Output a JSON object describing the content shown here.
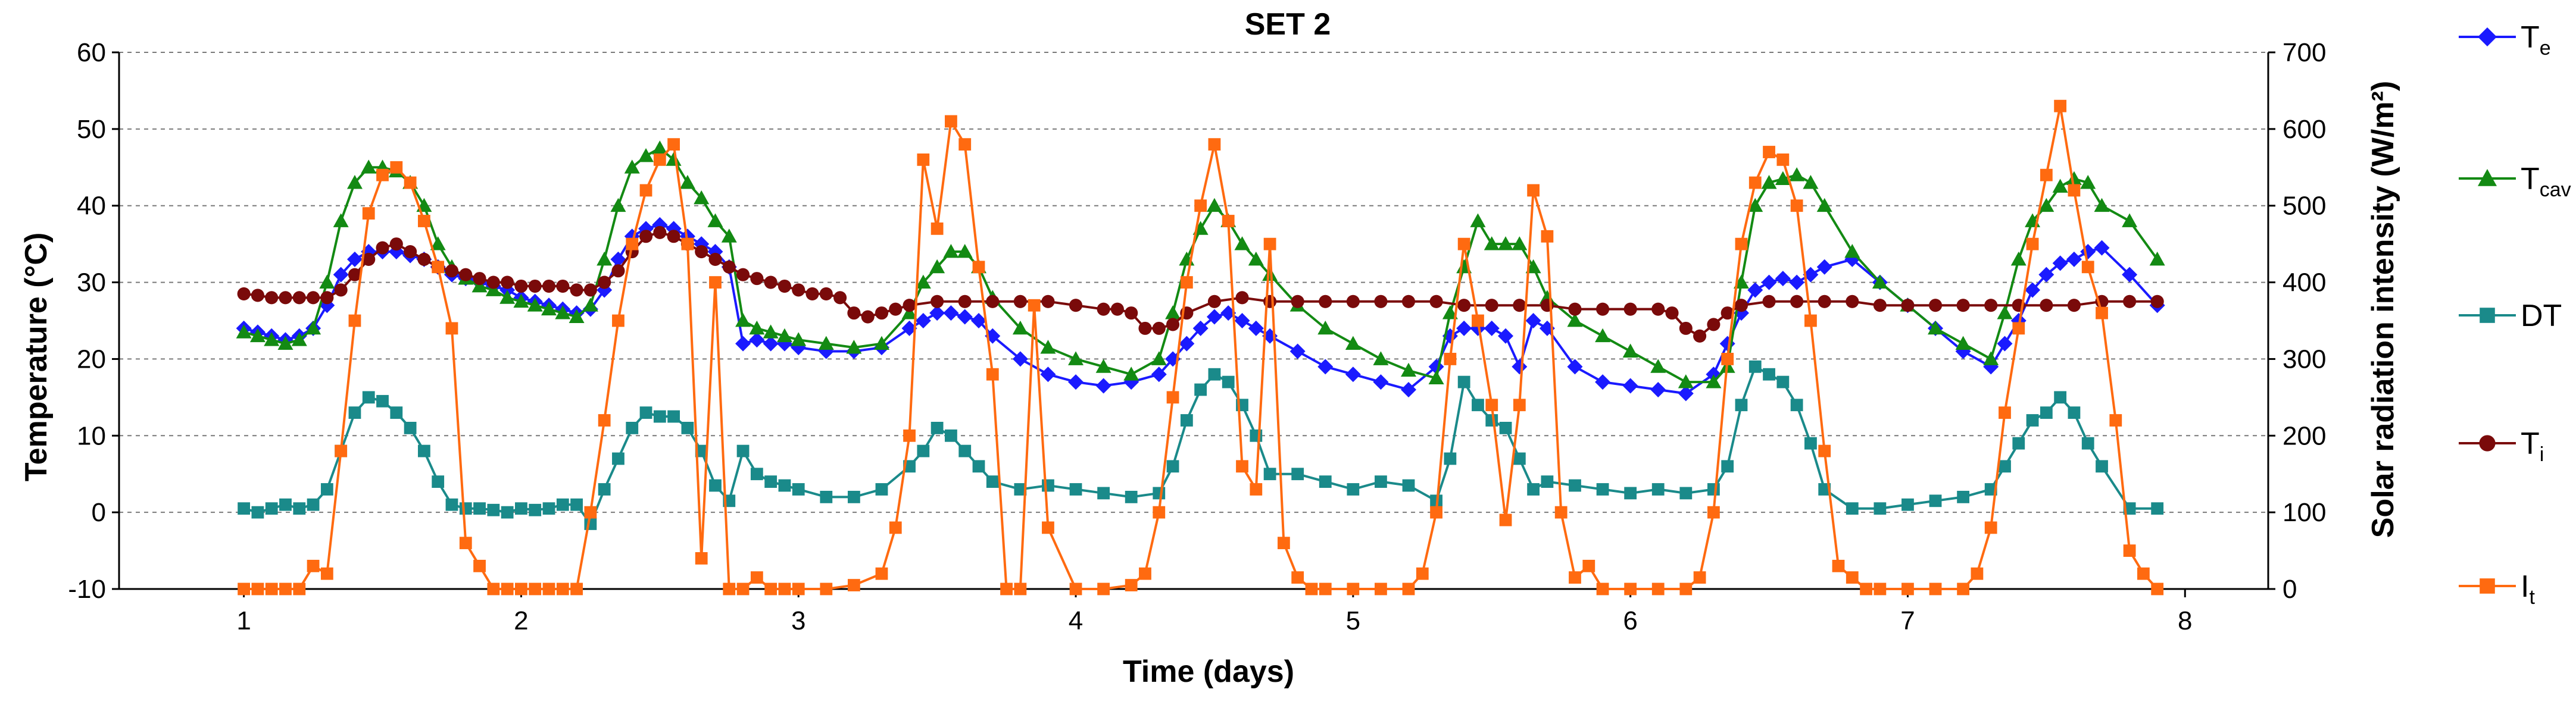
{
  "chart_data": {
    "type": "line",
    "title": "SET 2",
    "xlabel": "Time (days)",
    "ylabel": "Temperature (°C)",
    "y2label": "Solar radiation intensity (W/m²)",
    "xlim": [
      0.55,
      8.3
    ],
    "ylim": [
      -10,
      60
    ],
    "y2lim": [
      0,
      700
    ],
    "xticks": [
      "1",
      "2",
      "3",
      "4",
      "5",
      "6",
      "7",
      "8"
    ],
    "yticks": [
      "60",
      "50",
      "40",
      "30",
      "20",
      "10",
      "0",
      "-10"
    ],
    "y2ticks": [
      "700",
      "600",
      "500",
      "400",
      "300",
      "200",
      "100",
      "0"
    ],
    "grid": true,
    "legend_position": "right",
    "series": [
      {
        "name": "Te",
        "base": "T",
        "sub": "e",
        "axis": "left",
        "color": "#1a1aff",
        "marker": "diamond",
        "x": [
          1,
          1.05,
          1.1,
          1.15,
          1.2,
          1.25,
          1.3,
          1.35,
          1.4,
          1.45,
          1.5,
          1.55,
          1.6,
          1.65,
          1.7,
          1.75,
          1.8,
          1.85,
          1.9,
          1.95,
          2,
          2.05,
          2.1,
          2.15,
          2.2,
          2.25,
          2.3,
          2.35,
          2.4,
          2.45,
          2.5,
          2.55,
          2.6,
          2.65,
          2.7,
          2.75,
          2.8,
          2.85,
          2.9,
          2.95,
          3,
          3.1,
          3.2,
          3.3,
          3.4,
          3.45,
          3.5,
          3.55,
          3.6,
          3.65,
          3.7,
          3.8,
          3.9,
          4,
          4.1,
          4.2,
          4.3,
          4.35,
          4.4,
          4.45,
          4.5,
          4.55,
          4.6,
          4.65,
          4.7,
          4.8,
          4.9,
          5,
          5.1,
          5.2,
          5.3,
          5.35,
          5.4,
          5.45,
          5.5,
          5.55,
          5.6,
          5.65,
          5.7,
          5.8,
          5.9,
          6,
          6.1,
          6.2,
          6.3,
          6.35,
          6.4,
          6.45,
          6.5,
          6.55,
          6.6,
          6.65,
          6.7,
          6.8,
          6.9,
          7,
          7.1,
          7.2,
          7.3,
          7.35,
          7.4,
          7.45,
          7.5,
          7.55,
          7.6,
          7.65,
          7.7,
          7.8,
          7.9
        ],
        "y": [
          24,
          23.5,
          23,
          22.5,
          23,
          24,
          27,
          31,
          33,
          34,
          34,
          34,
          33.5,
          33,
          32,
          31,
          30.5,
          30,
          29.5,
          29,
          28,
          27.5,
          27,
          26.5,
          26,
          26.5,
          29,
          33,
          36,
          37,
          37.5,
          37,
          36,
          35,
          34,
          32,
          22,
          22.5,
          22,
          22,
          21.5,
          21,
          21,
          21.5,
          24,
          25,
          26,
          26,
          25.5,
          25,
          23,
          20,
          18,
          17,
          16.5,
          17,
          18,
          20,
          22,
          24,
          25.5,
          26,
          25,
          24,
          23,
          21,
          19,
          18,
          17,
          16,
          19,
          23,
          24,
          24,
          24,
          23,
          19,
          25,
          24,
          19,
          17,
          16.5,
          16,
          15.5,
          18,
          22,
          26,
          29,
          30,
          30.5,
          30,
          31,
          32,
          33,
          30,
          27,
          24,
          21,
          19,
          22,
          25,
          29,
          31,
          32.5,
          33,
          34,
          34.5,
          31,
          27
        ]
      },
      {
        "name": "Tcav",
        "base": "T",
        "sub": "cav",
        "axis": "left",
        "color": "#138a13",
        "marker": "triangle",
        "x": [
          1,
          1.05,
          1.1,
          1.15,
          1.2,
          1.25,
          1.3,
          1.35,
          1.4,
          1.45,
          1.5,
          1.55,
          1.6,
          1.65,
          1.7,
          1.75,
          1.8,
          1.85,
          1.9,
          1.95,
          2,
          2.05,
          2.1,
          2.15,
          2.2,
          2.25,
          2.3,
          2.35,
          2.4,
          2.45,
          2.5,
          2.55,
          2.6,
          2.65,
          2.7,
          2.75,
          2.8,
          2.85,
          2.9,
          2.95,
          3,
          3.1,
          3.2,
          3.3,
          3.4,
          3.45,
          3.5,
          3.55,
          3.6,
          3.65,
          3.7,
          3.8,
          3.9,
          4,
          4.1,
          4.2,
          4.3,
          4.35,
          4.4,
          4.45,
          4.5,
          4.55,
          4.6,
          4.65,
          4.7,
          4.8,
          4.9,
          5,
          5.1,
          5.2,
          5.3,
          5.35,
          5.4,
          5.45,
          5.5,
          5.55,
          5.6,
          5.65,
          5.7,
          5.8,
          5.9,
          6,
          6.1,
          6.2,
          6.3,
          6.35,
          6.4,
          6.45,
          6.5,
          6.55,
          6.6,
          6.65,
          6.7,
          6.8,
          6.9,
          7,
          7.1,
          7.2,
          7.3,
          7.35,
          7.4,
          7.45,
          7.5,
          7.55,
          7.6,
          7.65,
          7.7,
          7.8,
          7.9
        ],
        "y": [
          23.5,
          23,
          22.5,
          22,
          22.5,
          24,
          30,
          38,
          43,
          45,
          45,
          44.5,
          43,
          40,
          35,
          32,
          30.5,
          29.5,
          29,
          28,
          27.5,
          27,
          26.5,
          26,
          25.5,
          27,
          33,
          40,
          45,
          46.5,
          47.5,
          46,
          43,
          41,
          38,
          36,
          25,
          24,
          23.5,
          23,
          22.5,
          22,
          21.5,
          22,
          26,
          30,
          32,
          34,
          34,
          32,
          28,
          24,
          21.5,
          20,
          19,
          18,
          20,
          26,
          33,
          37,
          40,
          38,
          35,
          33,
          31,
          27,
          24,
          22,
          20,
          18.5,
          17.5,
          26,
          32,
          38,
          35,
          35,
          35,
          32,
          28,
          25,
          23,
          21,
          19,
          17,
          17,
          19,
          30,
          40,
          43,
          43.5,
          44,
          43,
          40,
          34,
          30,
          27,
          24,
          22,
          20,
          26,
          33,
          38,
          40,
          42.5,
          43.5,
          43,
          40,
          38,
          33
        ]
      },
      {
        "name": "DT",
        "base": "DT",
        "sub": "",
        "axis": "left",
        "color": "#1a8a8a",
        "marker": "square",
        "x": [
          1,
          1.05,
          1.1,
          1.15,
          1.2,
          1.25,
          1.3,
          1.35,
          1.4,
          1.45,
          1.5,
          1.55,
          1.6,
          1.65,
          1.7,
          1.75,
          1.8,
          1.85,
          1.9,
          1.95,
          2,
          2.05,
          2.1,
          2.15,
          2.2,
          2.25,
          2.3,
          2.35,
          2.4,
          2.45,
          2.5,
          2.55,
          2.6,
          2.65,
          2.7,
          2.75,
          2.8,
          2.85,
          2.9,
          2.95,
          3,
          3.1,
          3.2,
          3.3,
          3.4,
          3.45,
          3.5,
          3.55,
          3.6,
          3.65,
          3.7,
          3.8,
          3.9,
          4,
          4.1,
          4.2,
          4.3,
          4.35,
          4.4,
          4.45,
          4.5,
          4.55,
          4.6,
          4.65,
          4.7,
          4.8,
          4.9,
          5,
          5.1,
          5.2,
          5.3,
          5.35,
          5.4,
          5.45,
          5.5,
          5.55,
          5.6,
          5.65,
          5.7,
          5.8,
          5.9,
          6,
          6.1,
          6.2,
          6.3,
          6.35,
          6.4,
          6.45,
          6.5,
          6.55,
          6.6,
          6.65,
          6.7,
          6.8,
          6.9,
          7,
          7.1,
          7.2,
          7.3,
          7.35,
          7.4,
          7.45,
          7.5,
          7.55,
          7.6,
          7.65,
          7.7,
          7.8,
          7.9
        ],
        "y": [
          0.5,
          0,
          0.5,
          1,
          0.5,
          1,
          3,
          8,
          13,
          15,
          14.5,
          13,
          11,
          8,
          4,
          1,
          0.5,
          0.5,
          0.3,
          0,
          0.5,
          0.3,
          0.5,
          1,
          1,
          -1.5,
          3,
          7,
          11,
          13,
          12.5,
          12.5,
          11,
          8,
          3.5,
          1.5,
          8,
          5,
          4,
          3.5,
          3,
          2,
          2,
          3,
          6,
          8,
          11,
          10,
          8,
          6,
          4,
          3,
          3.5,
          3,
          2.5,
          2,
          2.5,
          6,
          12,
          16,
          18,
          17,
          14,
          10,
          5,
          5,
          4,
          3,
          4,
          3.5,
          1.5,
          7,
          17,
          14,
          12,
          11,
          7,
          3,
          4,
          3.5,
          3,
          2.5,
          3,
          2.5,
          3,
          6,
          14,
          19,
          18,
          17,
          14,
          9,
          3,
          0.5,
          0.5,
          1,
          1.5,
          2,
          3,
          6,
          9,
          12,
          13,
          15,
          13,
          9,
          6,
          0.5,
          0.5
        ]
      },
      {
        "name": "Ti",
        "base": "T",
        "sub": "i",
        "axis": "left",
        "color": "#7a0a0a",
        "marker": "circle",
        "x": [
          1,
          1.05,
          1.1,
          1.15,
          1.2,
          1.25,
          1.3,
          1.35,
          1.4,
          1.45,
          1.5,
          1.55,
          1.6,
          1.65,
          1.7,
          1.75,
          1.8,
          1.85,
          1.9,
          1.95,
          2,
          2.05,
          2.1,
          2.15,
          2.2,
          2.25,
          2.3,
          2.35,
          2.4,
          2.45,
          2.5,
          2.55,
          2.6,
          2.65,
          2.7,
          2.75,
          2.8,
          2.85,
          2.9,
          2.95,
          3,
          3.05,
          3.1,
          3.15,
          3.2,
          3.25,
          3.3,
          3.35,
          3.4,
          3.5,
          3.6,
          3.7,
          3.8,
          3.9,
          4,
          4.1,
          4.15,
          4.2,
          4.25,
          4.3,
          4.35,
          4.4,
          4.5,
          4.6,
          4.7,
          4.8,
          4.9,
          5,
          5.1,
          5.2,
          5.3,
          5.4,
          5.5,
          5.6,
          5.7,
          5.8,
          5.9,
          6,
          6.1,
          6.15,
          6.2,
          6.25,
          6.3,
          6.35,
          6.4,
          6.5,
          6.6,
          6.7,
          6.8,
          6.9,
          7,
          7.1,
          7.2,
          7.3,
          7.4,
          7.5,
          7.6,
          7.7,
          7.8,
          7.9
        ],
        "y": [
          28.5,
          28.3,
          28,
          28,
          28,
          28,
          28,
          29,
          31,
          33,
          34.5,
          35,
          34,
          33,
          32,
          31.5,
          31,
          30.5,
          30,
          30,
          29.5,
          29.5,
          29.5,
          29.5,
          29,
          29,
          30,
          31.5,
          34,
          36,
          36.5,
          36,
          35,
          34,
          33,
          32,
          31,
          30.5,
          30,
          29.5,
          29,
          28.5,
          28.5,
          28,
          26,
          25.5,
          26,
          26.5,
          27,
          27.5,
          27.5,
          27.5,
          27.5,
          27.5,
          27,
          26.5,
          26.5,
          26,
          24,
          24,
          24.5,
          26,
          27.5,
          28,
          27.5,
          27.5,
          27.5,
          27.5,
          27.5,
          27.5,
          27.5,
          27,
          27,
          27,
          27,
          26.5,
          26.5,
          26.5,
          26.5,
          26,
          24,
          23,
          24.5,
          26,
          27,
          27.5,
          27.5,
          27.5,
          27.5,
          27,
          27,
          27,
          27,
          27,
          27,
          27,
          27,
          27.5,
          27.5,
          27.5
        ]
      },
      {
        "name": "It",
        "base": "I",
        "sub": "t",
        "axis": "right",
        "color": "#ff6a10",
        "marker": "square",
        "x": [
          1,
          1.05,
          1.1,
          1.15,
          1.2,
          1.25,
          1.3,
          1.35,
          1.4,
          1.45,
          1.5,
          1.55,
          1.6,
          1.65,
          1.7,
          1.75,
          1.8,
          1.85,
          1.9,
          1.95,
          2,
          2.05,
          2.1,
          2.15,
          2.2,
          2.25,
          2.3,
          2.35,
          2.4,
          2.45,
          2.5,
          2.55,
          2.6,
          2.65,
          2.7,
          2.75,
          2.8,
          2.85,
          2.9,
          2.95,
          3,
          3.1,
          3.2,
          3.3,
          3.35,
          3.4,
          3.45,
          3.5,
          3.55,
          3.6,
          3.65,
          3.7,
          3.75,
          3.8,
          3.85,
          3.9,
          4,
          4.1,
          4.2,
          4.25,
          4.3,
          4.35,
          4.4,
          4.45,
          4.5,
          4.55,
          4.6,
          4.65,
          4.7,
          4.75,
          4.8,
          4.85,
          4.9,
          5,
          5.1,
          5.2,
          5.25,
          5.3,
          5.35,
          5.4,
          5.45,
          5.5,
          5.55,
          5.6,
          5.65,
          5.7,
          5.75,
          5.8,
          5.85,
          5.9,
          6,
          6.1,
          6.2,
          6.25,
          6.3,
          6.35,
          6.4,
          6.45,
          6.5,
          6.55,
          6.6,
          6.65,
          6.7,
          6.75,
          6.8,
          6.85,
          6.9,
          7,
          7.1,
          7.2,
          7.25,
          7.3,
          7.35,
          7.4,
          7.45,
          7.5,
          7.55,
          7.6,
          7.65,
          7.7,
          7.75,
          7.8,
          7.85,
          7.9
        ],
        "y": [
          0,
          0,
          0,
          0,
          0,
          30,
          20,
          180,
          350,
          490,
          540,
          550,
          530,
          480,
          420,
          340,
          60,
          30,
          0,
          0,
          0,
          0,
          0,
          0,
          0,
          100,
          220,
          350,
          450,
          520,
          560,
          580,
          450,
          40,
          400,
          0,
          0,
          15,
          0,
          0,
          0,
          0,
          5,
          20,
          80,
          200,
          560,
          470,
          610,
          580,
          420,
          280,
          0,
          0,
          370,
          80,
          0,
          0,
          5,
          20,
          100,
          250,
          400,
          500,
          580,
          480,
          160,
          130,
          450,
          60,
          15,
          0,
          0,
          0,
          0,
          0,
          20,
          100,
          300,
          450,
          350,
          240,
          90,
          240,
          520,
          460,
          100,
          15,
          30,
          0,
          0,
          0,
          0,
          15,
          100,
          300,
          450,
          530,
          570,
          560,
          500,
          350,
          180,
          30,
          15,
          0,
          0,
          0,
          0,
          0,
          20,
          80,
          230,
          340,
          450,
          540,
          630,
          520,
          420,
          360,
          220,
          50,
          20,
          0
        ]
      }
    ]
  }
}
